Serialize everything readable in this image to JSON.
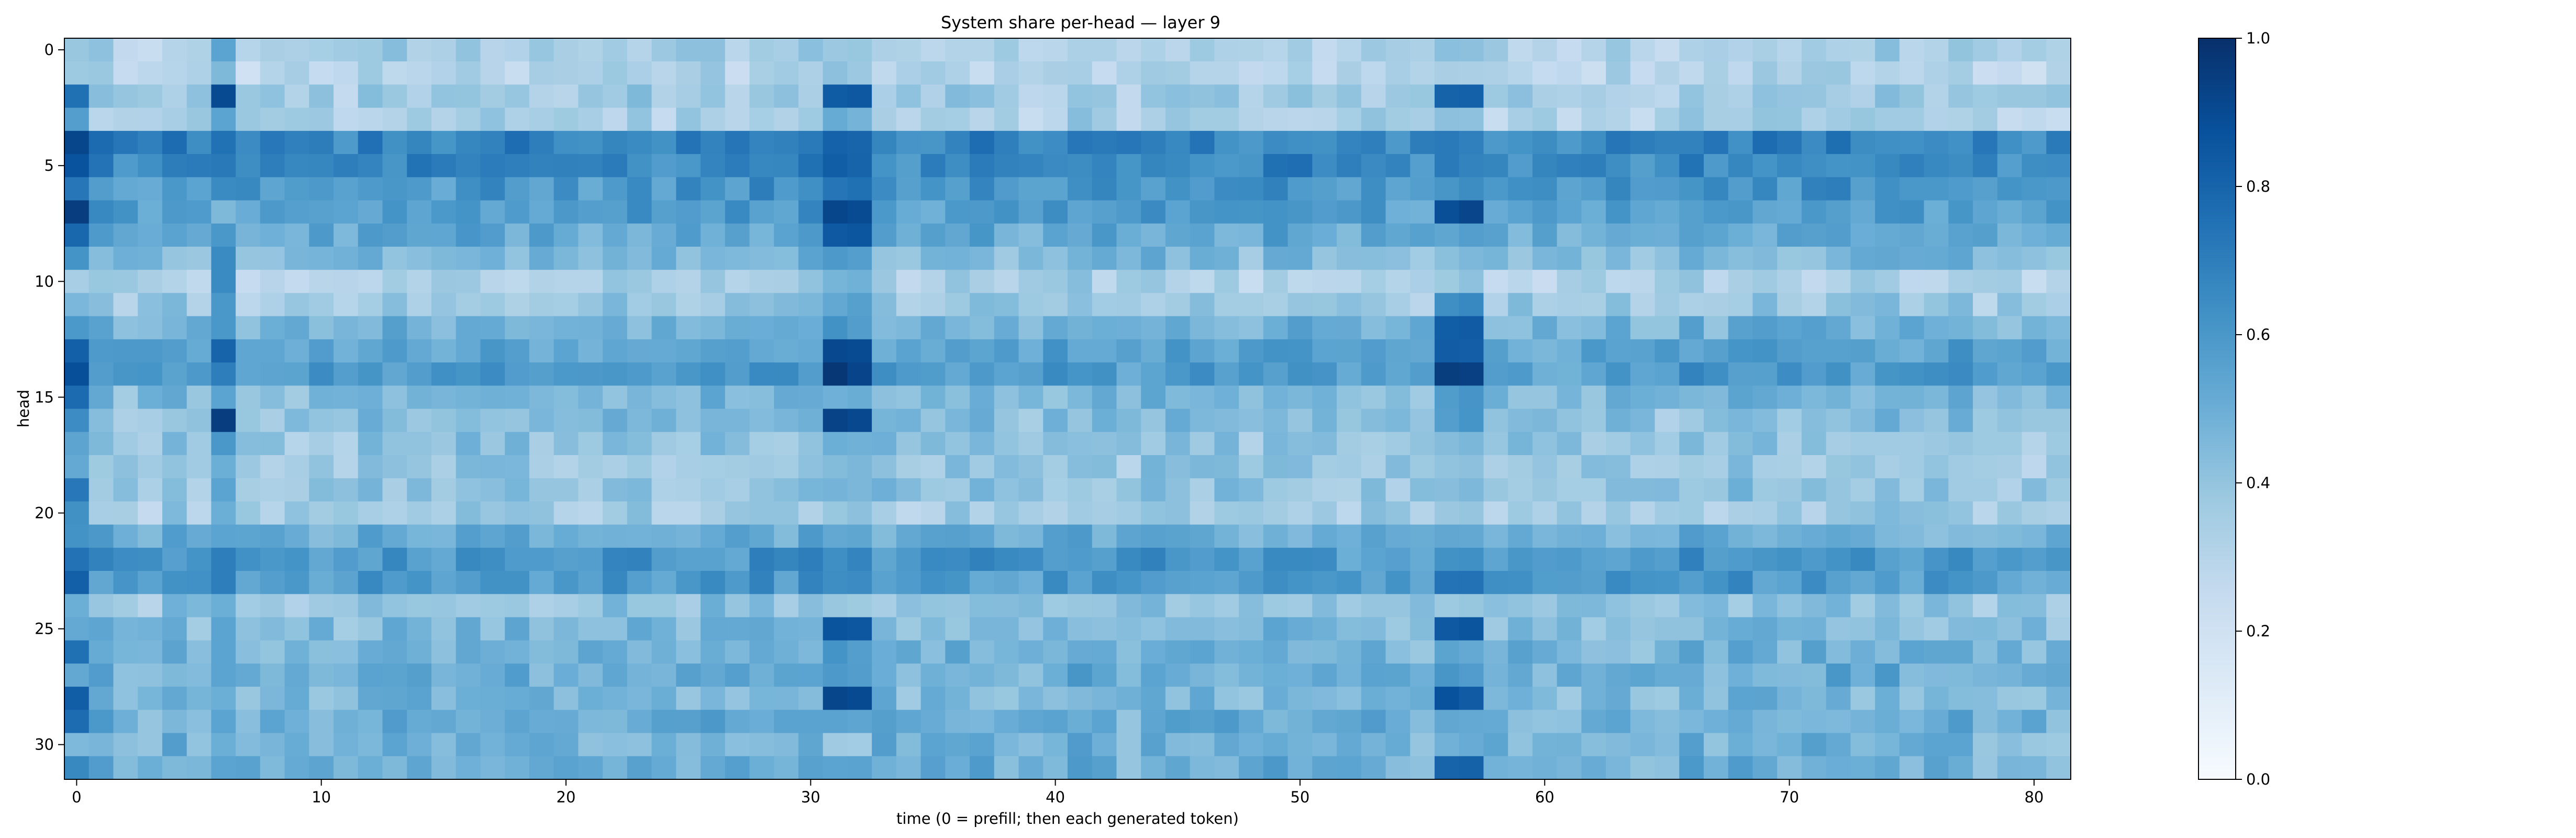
{
  "chart_data": {
    "type": "heatmap",
    "title": "System share per-head — layer 9",
    "xlabel": "time (0 = prefill; then each generated token)",
    "ylabel": "head",
    "x_count": 82,
    "y_count": 32,
    "xlim": [
      -0.5,
      81.5
    ],
    "ylim": [
      31.5,
      -0.5
    ],
    "x_ticks": [
      0,
      10,
      20,
      30,
      40,
      50,
      60,
      70,
      80
    ],
    "y_ticks": [
      0,
      5,
      10,
      15,
      20,
      25,
      30
    ],
    "colormap": "Blues",
    "color_range": [
      0.0,
      1.0
    ],
    "colorbar_ticks": [
      0.0,
      0.2,
      0.4,
      0.6,
      0.8,
      1.0
    ],
    "colorbar_tick_labels": [
      "0.0",
      "0.2",
      "0.4",
      "0.6",
      "0.8",
      "1.0"
    ],
    "rows": [
      {
        "head": 0,
        "base": 0.34,
        "t0": 0.4,
        "t6": 0.55,
        "t31": 0.4,
        "t56": 0.4
      },
      {
        "head": 1,
        "base": 0.3,
        "t0": 0.4,
        "t6": 0.45,
        "t31": 0.4,
        "t56": 0.35
      },
      {
        "head": 2,
        "base": 0.36,
        "t0": 0.78,
        "t6": 0.9,
        "t31": 0.85,
        "t56": 0.8
      },
      {
        "head": 3,
        "base": 0.33,
        "t0": 0.55,
        "t6": 0.55,
        "t31": 0.5,
        "t56": 0.4
      },
      {
        "head": 4,
        "base": 0.68,
        "t0": 0.9,
        "t6": 0.75,
        "t31": 0.8,
        "t56": 0.72
      },
      {
        "head": 5,
        "base": 0.66,
        "t0": 0.85,
        "t6": 0.72,
        "t31": 0.8,
        "t56": 0.7
      },
      {
        "head": 6,
        "base": 0.6,
        "t0": 0.72,
        "t6": 0.65,
        "t31": 0.75,
        "t56": 0.62
      },
      {
        "head": 7,
        "base": 0.58,
        "t0": 0.95,
        "t6": 0.45,
        "t31": 0.9,
        "t56": 0.9
      },
      {
        "head": 8,
        "base": 0.52,
        "t0": 0.8,
        "t6": 0.6,
        "t31": 0.85,
        "t56": 0.55
      },
      {
        "head": 9,
        "base": 0.45,
        "t0": 0.6,
        "t6": 0.65,
        "t31": 0.6,
        "t56": 0.45
      },
      {
        "head": 10,
        "base": 0.33,
        "t0": 0.35,
        "t6": 0.65,
        "t31": 0.5,
        "t56": 0.4
      },
      {
        "head": 11,
        "base": 0.38,
        "t0": 0.45,
        "t6": 0.6,
        "t31": 0.55,
        "t56": 0.65
      },
      {
        "head": 12,
        "base": 0.48,
        "t0": 0.6,
        "t6": 0.6,
        "t31": 0.6,
        "t56": 0.85
      },
      {
        "head": 13,
        "base": 0.55,
        "t0": 0.8,
        "t6": 0.8,
        "t31": 0.92,
        "t56": 0.85
      },
      {
        "head": 14,
        "base": 0.58,
        "t0": 0.9,
        "t6": 0.7,
        "t31": 0.95,
        "t56": 0.95
      },
      {
        "head": 15,
        "base": 0.45,
        "t0": 0.75,
        "t6": 0.55,
        "t31": 0.5,
        "t56": 0.6
      },
      {
        "head": 16,
        "base": 0.42,
        "t0": 0.65,
        "t6": 0.95,
        "t31": 0.9,
        "t56": 0.6
      },
      {
        "head": 17,
        "base": 0.4,
        "t0": 0.55,
        "t6": 0.6,
        "t31": 0.5,
        "t56": 0.45
      },
      {
        "head": 18,
        "base": 0.38,
        "t0": 0.5,
        "t6": 0.5,
        "t31": 0.45,
        "t56": 0.4
      },
      {
        "head": 19,
        "base": 0.4,
        "t0": 0.7,
        "t6": 0.55,
        "t31": 0.45,
        "t56": 0.45
      },
      {
        "head": 20,
        "base": 0.36,
        "t0": 0.65,
        "t6": 0.5,
        "t31": 0.4,
        "t56": 0.4
      },
      {
        "head": 21,
        "base": 0.5,
        "t0": 0.6,
        "t6": 0.55,
        "t31": 0.55,
        "t56": 0.55
      },
      {
        "head": 22,
        "base": 0.6,
        "t0": 0.75,
        "t6": 0.7,
        "t31": 0.65,
        "t56": 0.65
      },
      {
        "head": 23,
        "base": 0.58,
        "t0": 0.8,
        "t6": 0.7,
        "t31": 0.65,
        "t56": 0.75
      },
      {
        "head": 24,
        "base": 0.4,
        "t0": 0.5,
        "t6": 0.5,
        "t31": 0.4,
        "t56": 0.4
      },
      {
        "head": 25,
        "base": 0.45,
        "t0": 0.5,
        "t6": 0.55,
        "t31": 0.85,
        "t56": 0.85
      },
      {
        "head": 26,
        "base": 0.48,
        "t0": 0.75,
        "t6": 0.55,
        "t31": 0.6,
        "t56": 0.55
      },
      {
        "head": 27,
        "base": 0.5,
        "t0": 0.55,
        "t6": 0.55,
        "t31": 0.6,
        "t56": 0.6
      },
      {
        "head": 28,
        "base": 0.46,
        "t0": 0.85,
        "t6": 0.5,
        "t31": 0.9,
        "t56": 0.85
      },
      {
        "head": 29,
        "base": 0.5,
        "t0": 0.75,
        "t6": 0.55,
        "t31": 0.55,
        "t56": 0.55
      },
      {
        "head": 30,
        "base": 0.48,
        "t0": 0.45,
        "t6": 0.5,
        "t31": 0.35,
        "t56": 0.5
      },
      {
        "head": 31,
        "base": 0.5,
        "t0": 0.65,
        "t6": 0.55,
        "t31": 0.55,
        "t56": 0.8
      }
    ]
  }
}
